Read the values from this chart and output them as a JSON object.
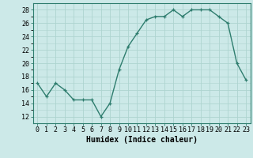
{
  "x": [
    0,
    1,
    2,
    3,
    4,
    5,
    6,
    7,
    8,
    9,
    10,
    11,
    12,
    13,
    14,
    15,
    16,
    17,
    18,
    19,
    20,
    21,
    22,
    23
  ],
  "y": [
    17,
    15,
    17,
    16,
    14.5,
    14.5,
    14.5,
    12,
    14,
    19,
    22.5,
    24.5,
    26.5,
    27,
    27,
    28,
    27,
    28,
    28,
    28,
    27,
    26,
    20,
    17.5
  ],
  "line_color": "#2e7d6e",
  "marker": "+",
  "marker_size": 3.5,
  "bg_color": "#cce9e8",
  "grid_color": "#aed4d0",
  "xlabel": "Humidex (Indice chaleur)",
  "xlabel_fontsize": 7,
  "ylim": [
    11,
    29
  ],
  "xlim": [
    -0.5,
    23.5
  ],
  "yticks": [
    12,
    14,
    16,
    18,
    20,
    22,
    24,
    26,
    28
  ],
  "xticks": [
    0,
    1,
    2,
    3,
    4,
    5,
    6,
    7,
    8,
    9,
    10,
    11,
    12,
    13,
    14,
    15,
    16,
    17,
    18,
    19,
    20,
    21,
    22,
    23
  ],
  "xtick_labels": [
    "0",
    "1",
    "2",
    "3",
    "4",
    "5",
    "6",
    "7",
    "8",
    "9",
    "10",
    "11",
    "12",
    "13",
    "14",
    "15",
    "16",
    "17",
    "18",
    "19",
    "20",
    "21",
    "22",
    "23"
  ],
  "tick_fontsize": 6,
  "linewidth": 1.0
}
